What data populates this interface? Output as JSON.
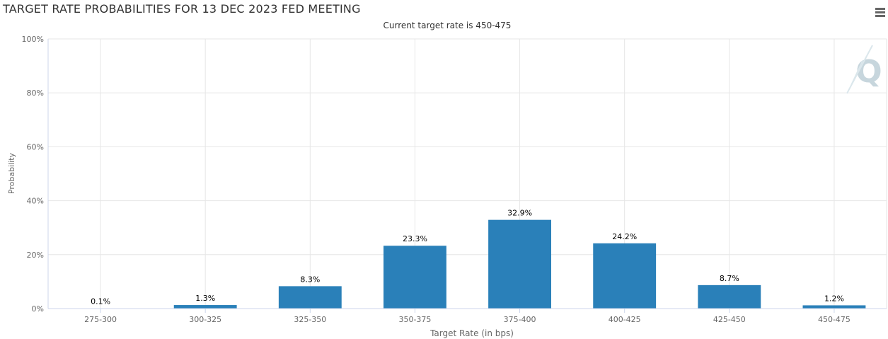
{
  "title": "TARGET RATE PROBABILITIES FOR 13 DEC 2023 FED MEETING",
  "subtitle": "Current target rate is 450-475",
  "menu_icon": "hamburger-menu-icon",
  "watermark_icon": "q-logo-icon",
  "colors": {
    "bar": "#2a80b9",
    "grid": "#e6e6e6",
    "text": "#333333"
  },
  "chart_data": {
    "type": "bar",
    "categories": [
      "275-300",
      "300-325",
      "325-350",
      "350-375",
      "375-400",
      "400-425",
      "425-450",
      "450-475"
    ],
    "values": [
      0.1,
      1.3,
      8.3,
      23.3,
      32.9,
      24.2,
      8.7,
      1.2
    ],
    "labels": [
      "0.1%",
      "1.3%",
      "8.3%",
      "23.3%",
      "32.9%",
      "24.2%",
      "8.7%",
      "1.2%"
    ],
    "yticks": [
      "0%",
      "20%",
      "40%",
      "60%",
      "80%",
      "100%"
    ],
    "xlabel": "Target Rate (in bps)",
    "ylabel": "Probability",
    "ylim": [
      0,
      100
    ],
    "grid": true
  }
}
